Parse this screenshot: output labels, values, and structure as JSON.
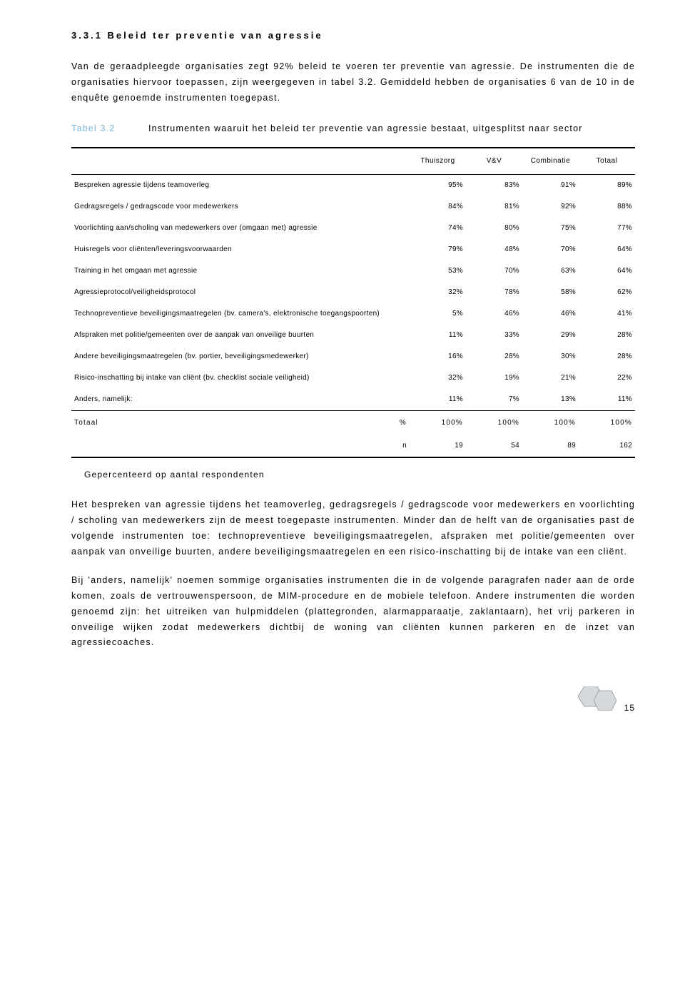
{
  "heading": "3.3.1  Beleid ter preventie van agressie",
  "intro_paragraphs": [
    "Van de geraadpleegde organisaties zegt 92% beleid te voeren ter preventie van agressie. De instrumenten die de organisaties hiervoor toepassen, zijn weergegeven in tabel 3.2. Gemiddeld hebben de organisaties 6 van de 10 in de enquête genoemde instrumenten toegepast."
  ],
  "table": {
    "label": "Tabel 3.2",
    "caption": "Instrumenten waaruit het beleid ter preventie van agressie bestaat, uitgesplitst naar sector",
    "columns": [
      "",
      "Thuiszorg",
      "V&V",
      "Combinatie",
      "Totaal"
    ],
    "rows": [
      {
        "label": "Bespreken agressie tijdens teamoverleg",
        "vals": [
          "95%",
          "83%",
          "91%",
          "89%"
        ]
      },
      {
        "label": "Gedragsregels / gedragscode voor medewerkers",
        "vals": [
          "84%",
          "81%",
          "92%",
          "88%"
        ]
      },
      {
        "label": "Voorlichting aan/scholing van medewerkers over (omgaan met) agressie",
        "vals": [
          "74%",
          "80%",
          "75%",
          "77%"
        ]
      },
      {
        "label": "Huisregels voor cliënten/leveringsvoorwaarden",
        "vals": [
          "79%",
          "48%",
          "70%",
          "64%"
        ]
      },
      {
        "label": "Training in het omgaan met agressie",
        "vals": [
          "53%",
          "70%",
          "63%",
          "64%"
        ]
      },
      {
        "label": "Agressieprotocol/veiligheidsprotocol",
        "vals": [
          "32%",
          "78%",
          "58%",
          "62%"
        ]
      },
      {
        "label": "Technopreventieve beveiligingsmaatregelen (bv. camera's, elektronische toegangspoorten)",
        "vals": [
          "5%",
          "46%",
          "46%",
          "41%"
        ]
      },
      {
        "label": "Afspraken met politie/gemeenten over de aanpak van onveilige buurten",
        "vals": [
          "11%",
          "33%",
          "29%",
          "28%"
        ]
      },
      {
        "label": "Andere beveiligingsmaatregelen (bv. portier, beveiligingsmedewerker)",
        "vals": [
          "16%",
          "28%",
          "30%",
          "28%"
        ]
      },
      {
        "label": "Risico-inschatting bij intake van cliënt (bv. checklist sociale veiligheid)",
        "vals": [
          "32%",
          "19%",
          "21%",
          "22%"
        ]
      },
      {
        "label": "Anders, namelijk:",
        "vals": [
          "11%",
          "7%",
          "13%",
          "11%"
        ]
      }
    ],
    "total_label": "Totaal",
    "total_unit": "%",
    "total_vals": [
      "100%",
      "100%",
      "100%",
      "100%"
    ],
    "n_label": "n",
    "n_vals": [
      "19",
      "54",
      "89",
      "162"
    ]
  },
  "respondents_note": "Gepercenteerd op aantal respondenten",
  "body_paragraphs": [
    "Het bespreken van agressie tijdens het teamoverleg, gedragsregels / gedragscode voor medewerkers en voorlichting / scholing van medewerkers zijn de meest toegepaste instrumenten. Minder dan de helft van de organisaties past de volgende instrumenten toe: technopreventieve beveiligingsmaatregelen, afspraken met politie/gemeenten over aanpak van onveilige buurten, andere beveiligingsmaatregelen en een risico-inschatting bij de intake van een cliënt.",
    "Bij 'anders, namelijk' noemen sommige organisaties instrumenten die in de volgende paragrafen nader aan de orde komen, zoals de vertrouwenspersoon, de MIM-procedure en de mobiele telefoon. Andere instrumenten die worden genoemd zijn: het uitreiken van hulpmiddelen (plattegronden, alarmapparaatje, zaklantaarn), het vrij parkeren in onveilige wijken zodat medewerkers dichtbij de woning van cliënten kunnen parkeren en de inzet van agressiecoaches."
  ],
  "page_number": "15",
  "colors": {
    "hex_fill": "#d5d9dc",
    "hex_stroke": "#8e9498",
    "table_label": "#7bb5d9"
  }
}
